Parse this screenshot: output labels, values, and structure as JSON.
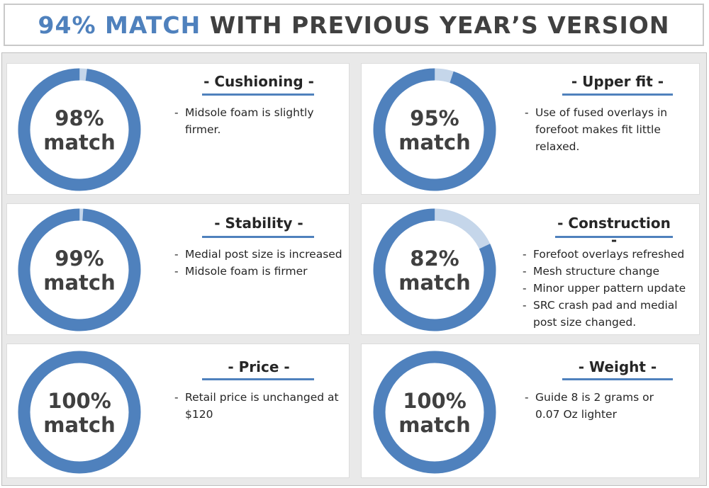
{
  "header": {
    "accent": "94% MATCH",
    "rest": "WITH PREVIOUS YEAR’S VERSION"
  },
  "colors": {
    "ring": "#4f81bd",
    "ring_remainder": "#c5d6ea",
    "accent_text": "#4f81bd"
  },
  "panels": [
    {
      "percent": 98,
      "match_line1": "98%",
      "match_line2": "match",
      "title": "- Cushioning -",
      "points": [
        "Midsole foam is slightly firmer."
      ]
    },
    {
      "percent": 95,
      "match_line1": "95%",
      "match_line2": "match",
      "title": "- Upper fit -",
      "points": [
        "Use of fused overlays in forefoot makes fit little relaxed."
      ]
    },
    {
      "percent": 99,
      "match_line1": "99%",
      "match_line2": "match",
      "title": "- Stability -",
      "points": [
        "Medial post size is increased",
        "Midsole foam is firmer"
      ]
    },
    {
      "percent": 82,
      "match_line1": "82%",
      "match_line2": "match",
      "title": "- Construction -",
      "points": [
        "Forefoot overlays refreshed",
        "Mesh structure change",
        "Minor upper pattern update",
        "SRC crash pad and medial post size changed."
      ]
    },
    {
      "percent": 100,
      "match_line1": "100%",
      "match_line2": "match",
      "title": "- Price -",
      "points": [
        "Retail price is unchanged at $120"
      ]
    },
    {
      "percent": 100,
      "match_line1": "100%",
      "match_line2": "match",
      "title": "- Weight -",
      "points": [
        "Guide 8 is 2 grams or 0.07 Oz lighter"
      ]
    }
  ]
}
